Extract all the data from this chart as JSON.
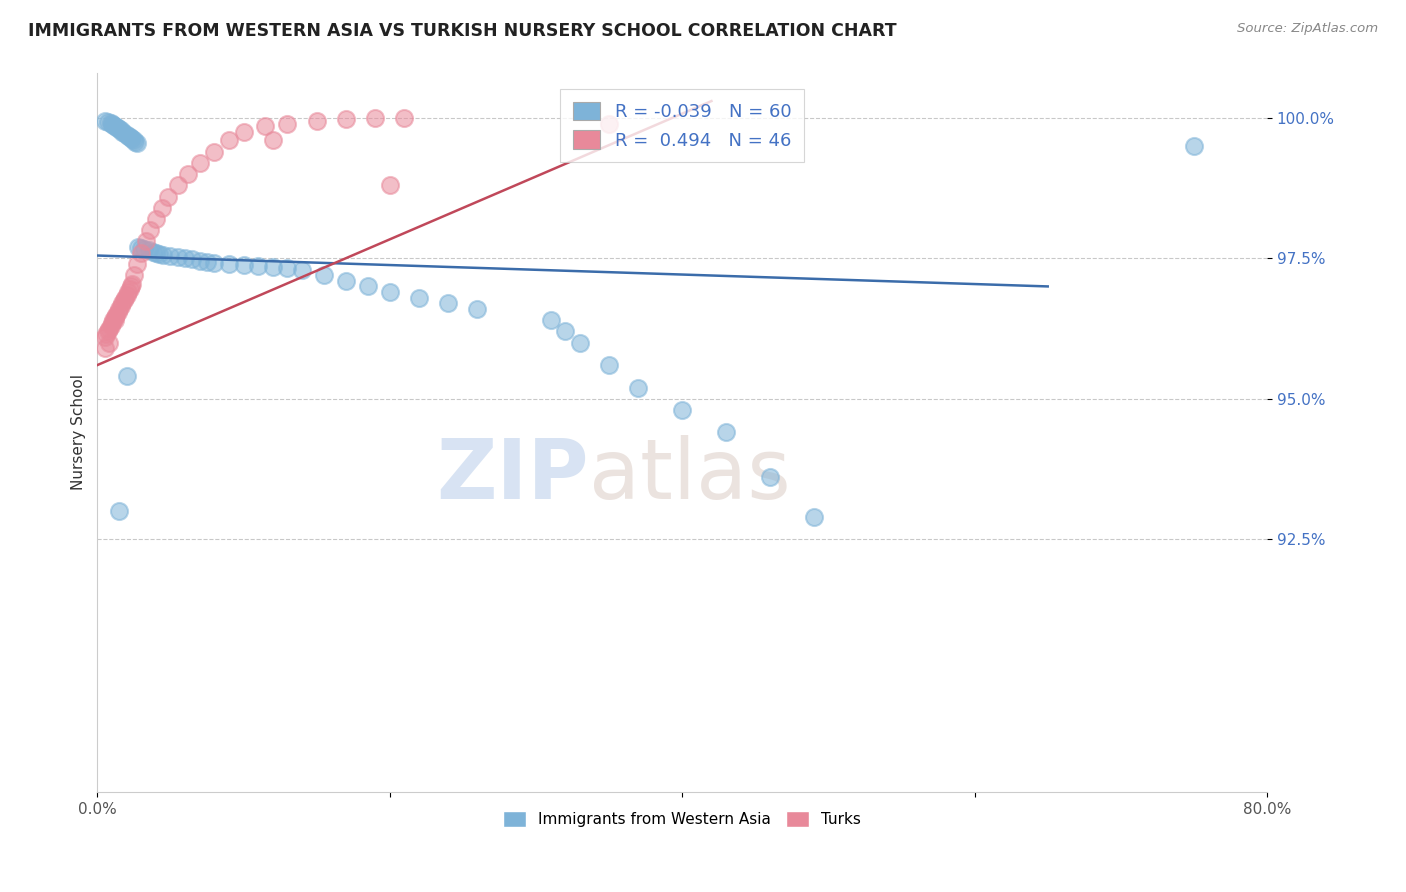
{
  "title": "IMMIGRANTS FROM WESTERN ASIA VS TURKISH NURSERY SCHOOL CORRELATION CHART",
  "source": "Source: ZipAtlas.com",
  "ylabel": "Nursery School",
  "blue_label": "Immigrants from Western Asia",
  "pink_label": "Turks",
  "blue_R": -0.039,
  "blue_N": 60,
  "pink_R": 0.494,
  "pink_N": 46,
  "blue_color": "#7eb3d8",
  "pink_color": "#e8899a",
  "blue_line_color": "#3b6caa",
  "pink_line_color": "#c0485a",
  "watermark_zip": "ZIP",
  "watermark_atlas": "atlas",
  "xlim": [
    0.0,
    0.8
  ],
  "ylim": [
    0.88,
    1.008
  ],
  "yticks": [
    0.925,
    0.95,
    0.975,
    1.0
  ],
  "ytick_labels": [
    "92.5%",
    "95.0%",
    "97.5%",
    "100.0%"
  ],
  "xticks": [
    0.0,
    0.2,
    0.4,
    0.6,
    0.8
  ],
  "xtick_labels": [
    "0.0%",
    "",
    "",
    "",
    "80.0%"
  ],
  "blue_line_x0": 0.0,
  "blue_line_x1": 0.65,
  "blue_line_y0": 0.9755,
  "blue_line_y1": 0.97,
  "pink_line_x0": 0.0,
  "pink_line_x1": 0.42,
  "pink_line_y0": 0.956,
  "pink_line_y1": 1.003,
  "blue_x": [
    0.005,
    0.007,
    0.009,
    0.01,
    0.011,
    0.012,
    0.013,
    0.014,
    0.015,
    0.016,
    0.017,
    0.018,
    0.02,
    0.021,
    0.022,
    0.023,
    0.024,
    0.025,
    0.026,
    0.027,
    0.028,
    0.03,
    0.032,
    0.035,
    0.038,
    0.04,
    0.042,
    0.045,
    0.05,
    0.055,
    0.06,
    0.065,
    0.07,
    0.075,
    0.08,
    0.09,
    0.1,
    0.11,
    0.12,
    0.13,
    0.14,
    0.155,
    0.17,
    0.185,
    0.2,
    0.22,
    0.24,
    0.26,
    0.31,
    0.32,
    0.33,
    0.35,
    0.37,
    0.4,
    0.43,
    0.46,
    0.49,
    0.75,
    0.02,
    0.015
  ],
  "blue_y": [
    0.9995,
    0.9993,
    0.9991,
    0.999,
    0.9988,
    0.9986,
    0.9984,
    0.9982,
    0.998,
    0.9978,
    0.9975,
    0.9973,
    0.997,
    0.9968,
    0.9966,
    0.9964,
    0.9962,
    0.996,
    0.9958,
    0.9956,
    0.977,
    0.9768,
    0.9766,
    0.9764,
    0.9762,
    0.976,
    0.9758,
    0.9756,
    0.9754,
    0.9752,
    0.975,
    0.9748,
    0.9746,
    0.9744,
    0.9742,
    0.974,
    0.9738,
    0.9736,
    0.9734,
    0.9732,
    0.973,
    0.972,
    0.971,
    0.97,
    0.969,
    0.968,
    0.967,
    0.966,
    0.964,
    0.962,
    0.96,
    0.956,
    0.952,
    0.948,
    0.944,
    0.936,
    0.929,
    0.995,
    0.954,
    0.93
  ],
  "pink_x": [
    0.005,
    0.006,
    0.007,
    0.008,
    0.009,
    0.01,
    0.011,
    0.012,
    0.013,
    0.014,
    0.015,
    0.016,
    0.017,
    0.018,
    0.019,
    0.02,
    0.021,
    0.022,
    0.023,
    0.024,
    0.025,
    0.027,
    0.03,
    0.033,
    0.036,
    0.04,
    0.044,
    0.048,
    0.055,
    0.062,
    0.07,
    0.08,
    0.09,
    0.1,
    0.115,
    0.13,
    0.15,
    0.17,
    0.19,
    0.21,
    0.005,
    0.008,
    0.012,
    0.35,
    0.12,
    0.2
  ],
  "pink_y": [
    0.961,
    0.9615,
    0.962,
    0.9625,
    0.963,
    0.9635,
    0.964,
    0.9645,
    0.965,
    0.9655,
    0.966,
    0.9665,
    0.967,
    0.9675,
    0.968,
    0.9685,
    0.969,
    0.9695,
    0.97,
    0.9705,
    0.972,
    0.974,
    0.976,
    0.978,
    0.98,
    0.982,
    0.984,
    0.986,
    0.988,
    0.99,
    0.992,
    0.994,
    0.996,
    0.9975,
    0.9985,
    0.999,
    0.9995,
    0.9998,
    0.9999,
    1.0,
    0.959,
    0.96,
    0.964,
    0.999,
    0.996,
    0.988
  ]
}
